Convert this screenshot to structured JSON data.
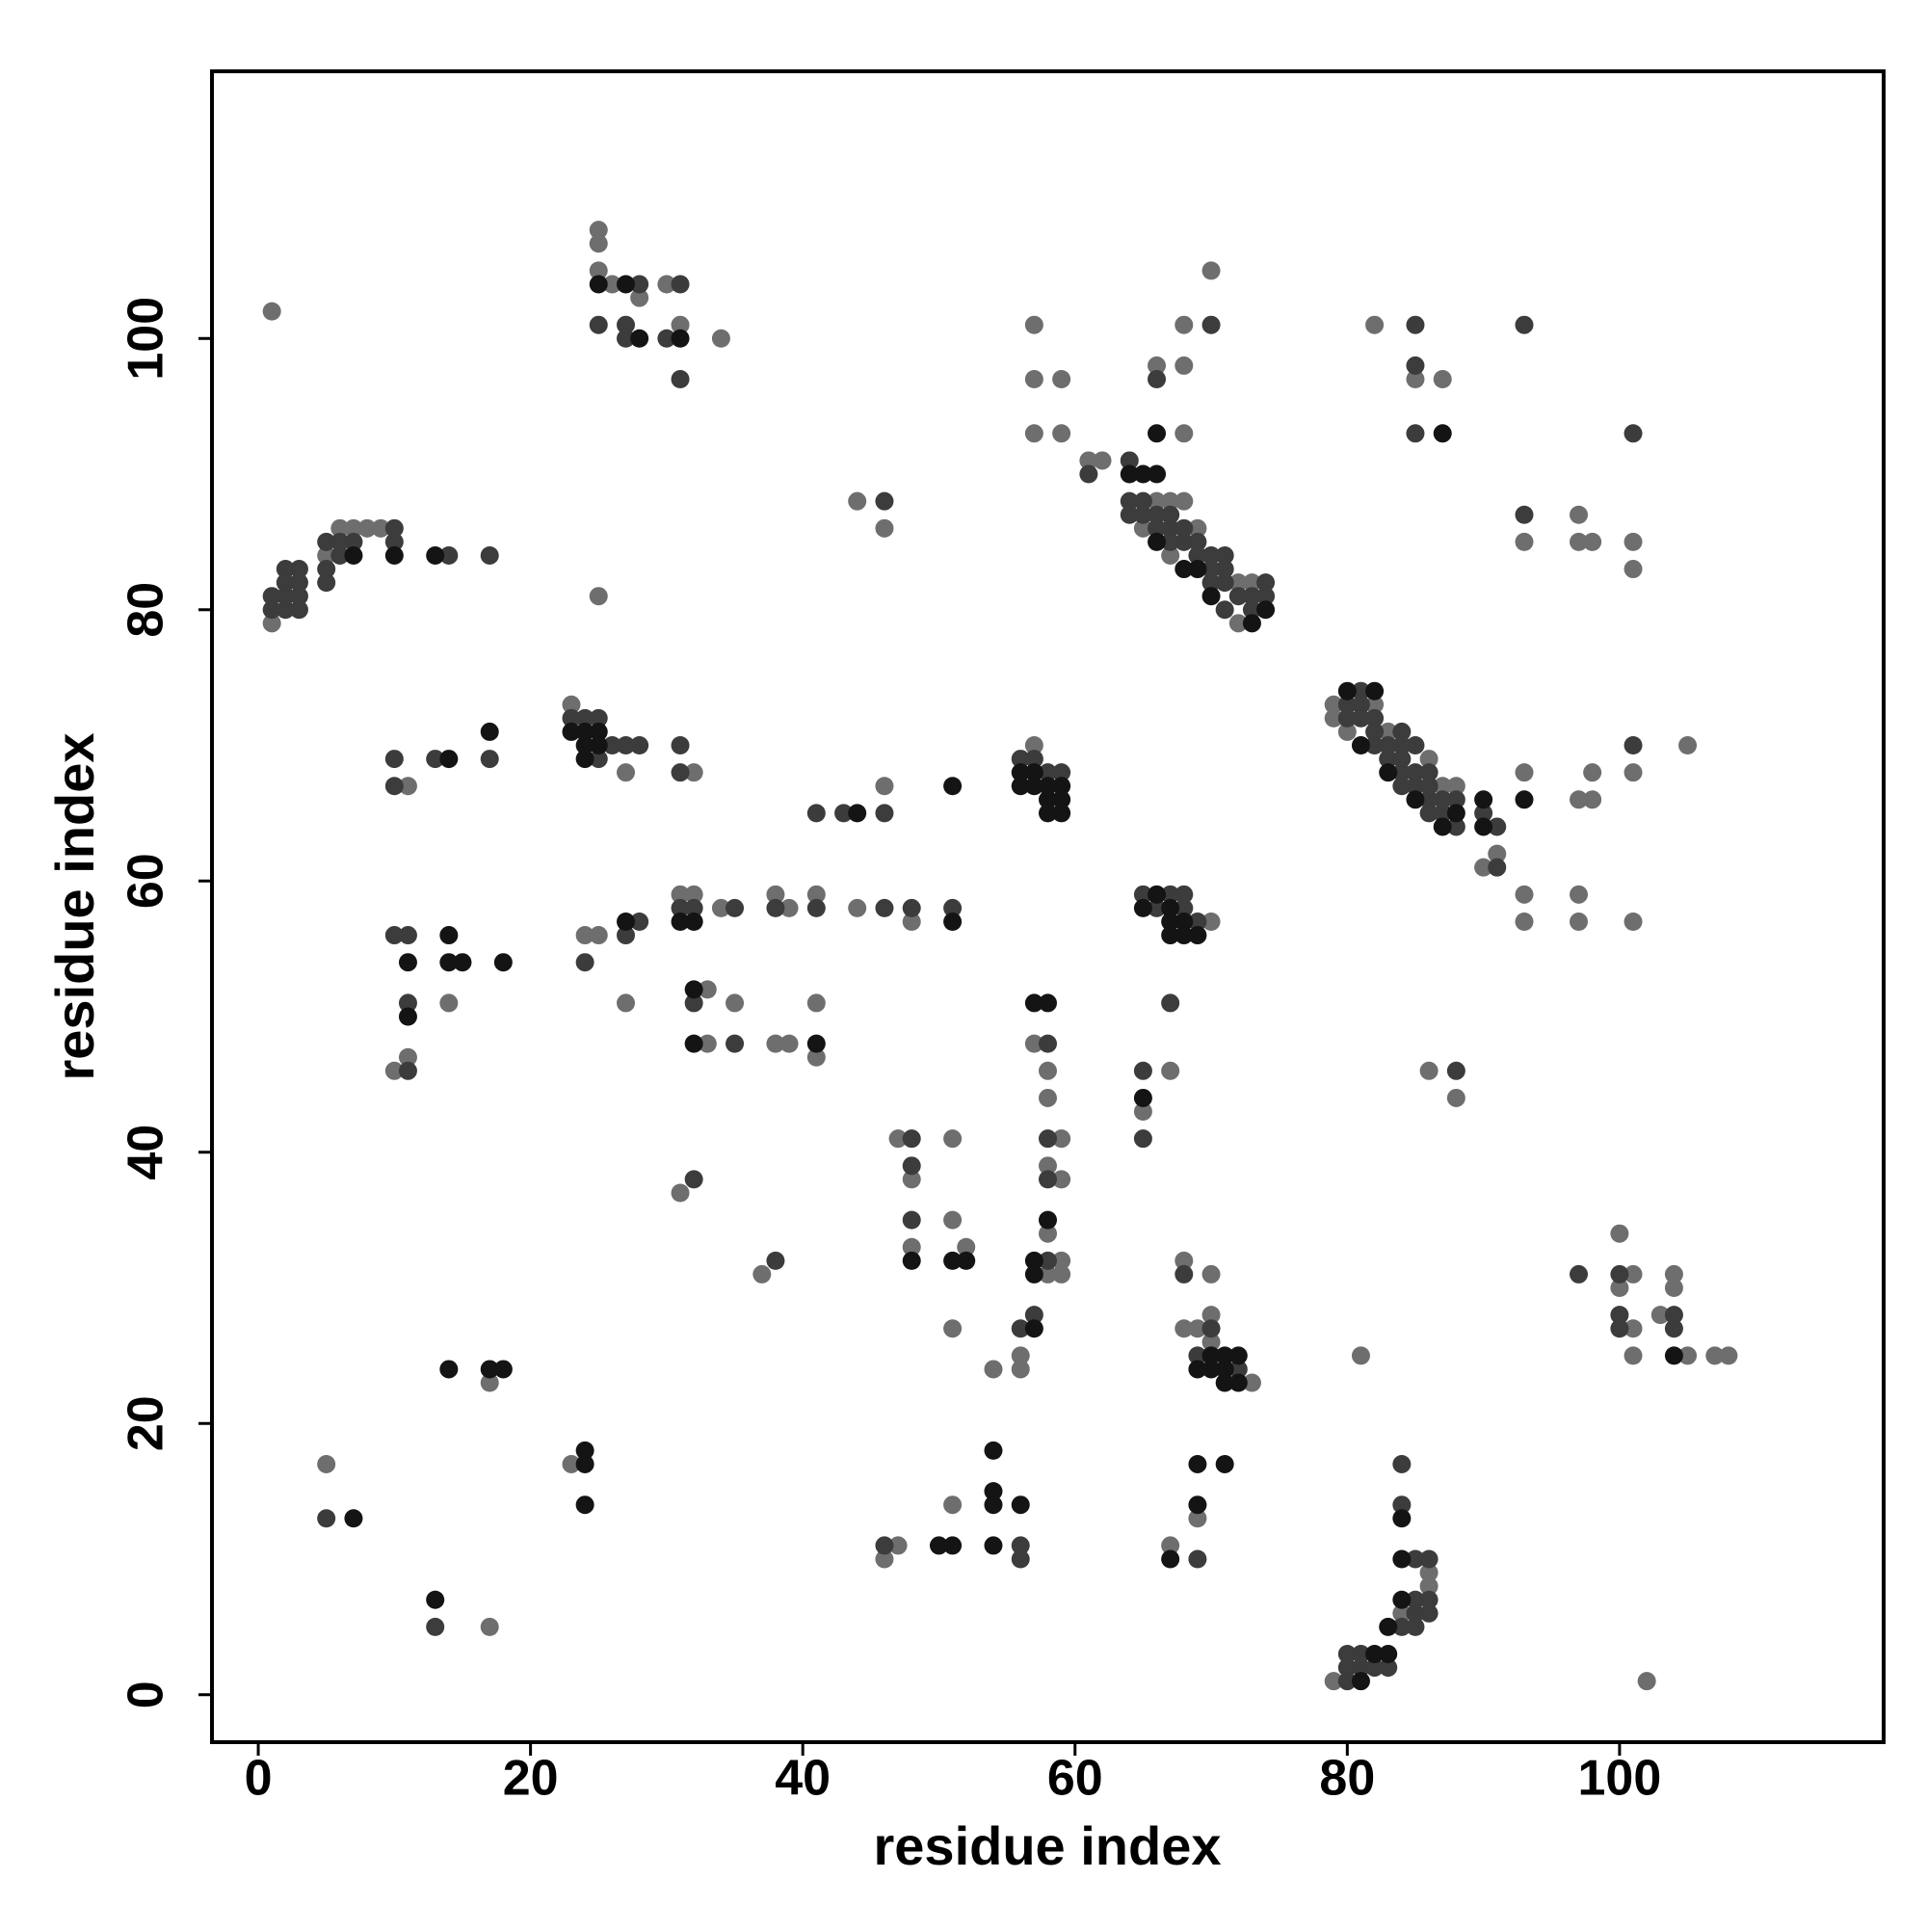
{
  "chart_data": {
    "type": "scatter",
    "x_label": "residue index",
    "y_label": "residue index",
    "xlim": [
      -3.4,
      119.4
    ],
    "ylim": [
      -3.5,
      119.7
    ],
    "xticks": [
      0,
      20,
      40,
      60,
      80,
      100
    ],
    "yticks": [
      0,
      20,
      40,
      60,
      80,
      100
    ],
    "grid": false,
    "series": [
      {
        "color": "#6e6e6e",
        "x": [
          1,
          1,
          5,
          6,
          7,
          8,
          9,
          25,
          25,
          25,
          26,
          28,
          30,
          31,
          34,
          25,
          23,
          11,
          27,
          32,
          11,
          10,
          14,
          24,
          25,
          27,
          31,
          32,
          34,
          38,
          39,
          41,
          44,
          48,
          33,
          35,
          33,
          38,
          39,
          41,
          41,
          46,
          44,
          46,
          31,
          37,
          47,
          48,
          48,
          51,
          51,
          52,
          51,
          5,
          17,
          17,
          23,
          46,
          47,
          51,
          54,
          56,
          56,
          57,
          58,
          58,
          58,
          59,
          58,
          59,
          58,
          59,
          59,
          57,
          57,
          57,
          57,
          59,
          59,
          61,
          62,
          66,
          68,
          68,
          68,
          70,
          65,
          66,
          67,
          68,
          69,
          67,
          72,
          72,
          73,
          67,
          65,
          70,
          68,
          70,
          68,
          69,
          70,
          70,
          73,
          67,
          69,
          79,
          79,
          80,
          82,
          83,
          86,
          87,
          88,
          91,
          90,
          81,
          82,
          87,
          86,
          88,
          79,
          84,
          86,
          86,
          93,
          93,
          93,
          93,
          97,
          97,
          98,
          97,
          98,
          98,
          97,
          97,
          101,
          101,
          101,
          101,
          105,
          102,
          100,
          100,
          101,
          101,
          101,
          103,
          104,
          104,
          105,
          107,
          108,
          85
        ],
        "y": [
          102,
          79,
          84,
          86,
          86,
          86,
          86,
          108,
          107,
          105,
          104,
          103,
          104,
          101,
          100,
          81,
          73,
          67,
          68,
          68,
          47,
          46,
          51,
          56,
          56,
          51,
          59,
          59,
          58,
          59,
          58,
          59,
          58,
          57,
          52,
          51,
          48,
          48,
          48,
          51,
          47,
          67,
          88,
          86,
          37,
          31,
          41,
          38,
          33,
          41,
          35,
          33,
          27,
          17,
          5,
          23,
          17,
          10,
          11,
          14,
          24,
          25,
          24,
          48,
          46,
          44,
          39,
          41,
          34,
          38,
          31,
          32,
          31,
          70,
          101,
          97,
          93,
          97,
          93,
          91,
          91,
          98,
          101,
          98,
          93,
          105,
          86,
          88,
          88,
          88,
          86,
          84,
          79,
          82,
          82,
          46,
          43,
          57,
          32,
          31,
          27,
          27,
          28,
          26,
          23,
          11,
          13,
          72,
          73,
          71,
          73,
          71,
          69,
          67,
          67,
          62,
          61,
          25,
          101,
          97,
          46,
          44,
          1,
          6,
          9,
          8,
          85,
          68,
          59,
          57,
          87,
          85,
          85,
          66,
          66,
          68,
          59,
          57,
          85,
          83,
          68,
          57,
          70,
          1,
          34,
          30,
          31,
          27,
          25,
          28,
          31,
          30,
          25,
          25,
          25,
          97
        ]
      },
      {
        "color": "#3c3c3c",
        "x": [
          1,
          1,
          2,
          2,
          2,
          2,
          3,
          3,
          3,
          3,
          5,
          5,
          5,
          6,
          6,
          7,
          10,
          10,
          14,
          17,
          25,
          27,
          27,
          28,
          30,
          31,
          31,
          23,
          24,
          25,
          25,
          26,
          27,
          28,
          10,
          10,
          13,
          17,
          31,
          31,
          10,
          11,
          11,
          11,
          24,
          27,
          28,
          31,
          32,
          35,
          38,
          41,
          46,
          48,
          51,
          32,
          35,
          41,
          43,
          46,
          46,
          32,
          38,
          48,
          48,
          48,
          5,
          13,
          46,
          56,
          56,
          56,
          57,
          58,
          58,
          58,
          58,
          56,
          57,
          58,
          59,
          61,
          64,
          64,
          64,
          65,
          65,
          66,
          66,
          67,
          67,
          67,
          68,
          68,
          69,
          69,
          70,
          70,
          70,
          71,
          71,
          71,
          71,
          72,
          73,
          73,
          74,
          74,
          66,
          70,
          65,
          65,
          67,
          65,
          66,
          67,
          68,
          68,
          69,
          68,
          69,
          70,
          72,
          69,
          80,
          80,
          81,
          81,
          81,
          82,
          82,
          82,
          83,
          83,
          84,
          84,
          84,
          84,
          84,
          85,
          85,
          85,
          86,
          86,
          86,
          86,
          87,
          87,
          88,
          88,
          90,
          91,
          91,
          85,
          85,
          85,
          88,
          80,
          80,
          80,
          81,
          81,
          82,
          83,
          84,
          84,
          84,
          85,
          85,
          85,
          86,
          86,
          86,
          85,
          93,
          93,
          101,
          101,
          97,
          100,
          100,
          100,
          104,
          104
        ],
        "y": [
          80,
          81,
          80,
          81,
          82,
          83,
          80,
          81,
          82,
          83,
          82,
          83,
          85,
          84,
          85,
          85,
          85,
          86,
          84,
          84,
          101,
          101,
          100,
          104,
          100,
          104,
          97,
          72,
          72,
          72,
          69,
          70,
          70,
          70,
          69,
          67,
          69,
          69,
          70,
          68,
          56,
          56,
          51,
          46,
          54,
          56,
          57,
          58,
          58,
          58,
          58,
          58,
          58,
          58,
          58,
          51,
          48,
          65,
          65,
          65,
          88,
          38,
          32,
          41,
          39,
          35,
          13,
          5,
          11,
          11,
          10,
          27,
          28,
          48,
          41,
          38,
          32,
          69,
          69,
          68,
          68,
          90,
          91,
          88,
          87,
          88,
          87,
          87,
          86,
          87,
          86,
          85,
          86,
          85,
          85,
          84,
          84,
          83,
          82,
          84,
          83,
          82,
          80,
          81,
          81,
          80,
          82,
          81,
          97,
          101,
          46,
          41,
          51,
          59,
          58,
          59,
          59,
          58,
          57,
          31,
          25,
          27,
          24,
          10,
          73,
          72,
          74,
          73,
          72,
          72,
          71,
          70,
          70,
          69,
          71,
          70,
          69,
          68,
          67,
          70,
          68,
          67,
          68,
          67,
          66,
          65,
          66,
          65,
          66,
          64,
          65,
          64,
          61,
          101,
          98,
          93,
          46,
          3,
          2,
          1,
          3,
          2,
          2,
          2,
          5,
          14,
          17,
          10,
          7,
          5,
          10,
          7,
          6,
          6,
          101,
          87,
          93,
          70,
          31,
          31,
          28,
          27,
          28,
          27
        ]
      },
      {
        "color": "#141414",
        "x": [
          24,
          24,
          24,
          25,
          25,
          23,
          14,
          17,
          14,
          14,
          15,
          18,
          11,
          11,
          10,
          7,
          13,
          27,
          31,
          32,
          32,
          32,
          41,
          44,
          51,
          51,
          7,
          13,
          14,
          17,
          18,
          24,
          24,
          24,
          50,
          51,
          54,
          54,
          54,
          54,
          56,
          48,
          51,
          52,
          56,
          56,
          57,
          57,
          58,
          58,
          58,
          59,
          59,
          59,
          57,
          58,
          58,
          57,
          57,
          57,
          65,
          66,
          67,
          67,
          67,
          68,
          68,
          69,
          66,
          65,
          66,
          64,
          66,
          68,
          69,
          70,
          73,
          74,
          69,
          70,
          70,
          71,
          71,
          71,
          72,
          72,
          69,
          71,
          69,
          67,
          80,
          82,
          81,
          83,
          85,
          87,
          88,
          90,
          90,
          81,
          82,
          83,
          84,
          84,
          84,
          83,
          87,
          93,
          104,
          65,
          31,
          27,
          25,
          28
        ],
        "y": [
          71,
          70,
          69,
          71,
          70,
          71,
          69,
          71,
          56,
          54,
          54,
          54,
          54,
          50,
          84,
          84,
          84,
          57,
          57,
          57,
          52,
          48,
          48,
          65,
          57,
          67,
          13,
          7,
          24,
          24,
          24,
          18,
          17,
          14,
          11,
          11,
          18,
          15,
          14,
          11,
          14,
          32,
          32,
          32,
          68,
          67,
          68,
          67,
          67,
          66,
          65,
          66,
          65,
          67,
          51,
          51,
          35,
          32,
          31,
          27,
          58,
          59,
          58,
          57,
          56,
          57,
          56,
          56,
          93,
          90,
          90,
          90,
          85,
          83,
          83,
          81,
          79,
          80,
          24,
          24,
          25,
          25,
          24,
          23,
          23,
          25,
          17,
          17,
          14,
          10,
          74,
          74,
          70,
          68,
          66,
          64,
          65,
          66,
          64,
          1,
          3,
          3,
          13,
          10,
          7,
          5,
          93,
          66,
          25,
          44,
          100,
          104,
          104,
          100
        ]
      }
    ]
  }
}
